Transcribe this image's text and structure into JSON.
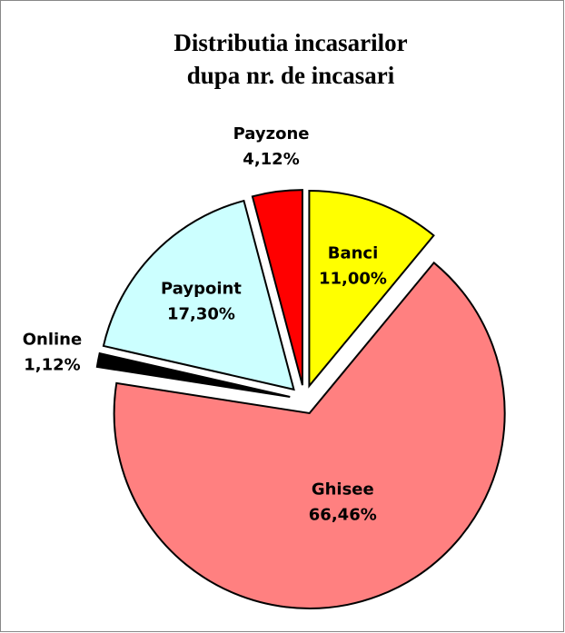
{
  "chart_data": {
    "type": "pie",
    "title": [
      "Distributia incasarilor",
      "dupa nr. de incasari"
    ],
    "categories": [
      "Banci",
      "Ghisee",
      "Online",
      "Paypoint",
      "Payzone"
    ],
    "values": [
      11.0,
      66.46,
      1.12,
      17.3,
      4.12
    ],
    "value_labels": [
      "11,00%",
      "66,46%",
      "1,12%",
      "17,30%",
      "4,12%"
    ],
    "colors": [
      "#ffff00",
      "#ff8080",
      "#000000",
      "#ccffff",
      "#ff0000"
    ],
    "exploded": true
  }
}
